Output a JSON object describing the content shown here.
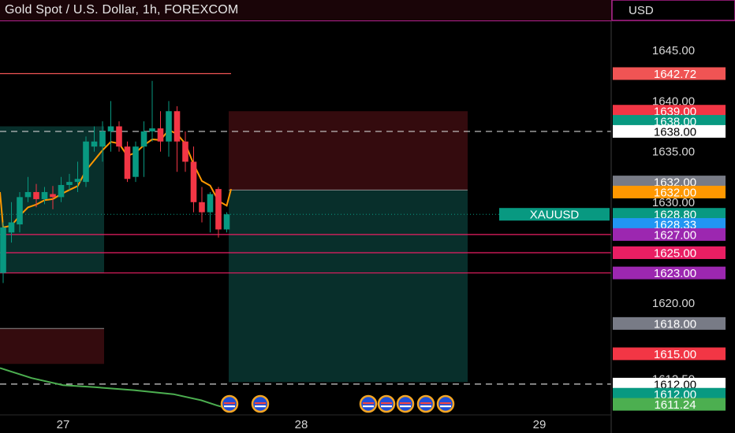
{
  "header": {
    "title": "Gold Spot / U.S. Dollar, 1h, FOREXCOM",
    "currency": "USD"
  },
  "chart_data": {
    "type": "candlestick",
    "symbol": "XAUUSD",
    "interval": "1h",
    "ylim": [
      1609.5,
      1650
    ],
    "x_ticks": [
      "27",
      "28",
      "29"
    ],
    "y_ticks": [
      "1645.00",
      "1640.00",
      "1635.00",
      "1630.00",
      "1625.00",
      "1620.00",
      "1615.00",
      "1612.50"
    ],
    "candles": [
      {
        "o": 1623.0,
        "h": 1628.0,
        "l": 1622.0,
        "c": 1627.5
      },
      {
        "o": 1627.0,
        "h": 1630.0,
        "l": 1626.0,
        "c": 1628.0
      },
      {
        "o": 1627.8,
        "h": 1631.0,
        "l": 1627.0,
        "c": 1630.5
      },
      {
        "o": 1630.5,
        "h": 1632.5,
        "l": 1630.0,
        "c": 1631.0
      },
      {
        "o": 1631.0,
        "h": 1631.8,
        "l": 1629.5,
        "c": 1630.3
      },
      {
        "o": 1630.3,
        "h": 1631.5,
        "l": 1629.8,
        "c": 1631.0
      },
      {
        "o": 1630.8,
        "h": 1631.6,
        "l": 1629.3,
        "c": 1630.5
      },
      {
        "o": 1630.5,
        "h": 1632.5,
        "l": 1630.0,
        "c": 1631.7
      },
      {
        "o": 1631.7,
        "h": 1632.8,
        "l": 1631.2,
        "c": 1632.0
      },
      {
        "o": 1632.0,
        "h": 1634.0,
        "l": 1631.0,
        "c": 1632.3
      },
      {
        "o": 1632.0,
        "h": 1636.5,
        "l": 1631.5,
        "c": 1636.0
      },
      {
        "o": 1635.5,
        "h": 1637.5,
        "l": 1635.0,
        "c": 1636.0
      },
      {
        "o": 1635.5,
        "h": 1638.0,
        "l": 1634.0,
        "c": 1637.0
      },
      {
        "o": 1637.0,
        "h": 1640.0,
        "l": 1635.0,
        "c": 1637.5
      },
      {
        "o": 1637.5,
        "h": 1638.0,
        "l": 1635.0,
        "c": 1635.5
      },
      {
        "o": 1635.5,
        "h": 1636.0,
        "l": 1632.0,
        "c": 1632.3
      },
      {
        "o": 1632.5,
        "h": 1636.0,
        "l": 1632.0,
        "c": 1635.5
      },
      {
        "o": 1635.5,
        "h": 1638.0,
        "l": 1632.5,
        "c": 1637.0
      },
      {
        "o": 1637.0,
        "h": 1642.0,
        "l": 1636.0,
        "c": 1637.3
      },
      {
        "o": 1637.3,
        "h": 1639.0,
        "l": 1635.0,
        "c": 1636.0
      },
      {
        "o": 1636.0,
        "h": 1640.0,
        "l": 1634.5,
        "c": 1639.0
      },
      {
        "o": 1639.0,
        "h": 1639.5,
        "l": 1633.0,
        "c": 1636.0
      },
      {
        "o": 1636.0,
        "h": 1637.0,
        "l": 1633.0,
        "c": 1634.0
      },
      {
        "o": 1634.0,
        "h": 1635.5,
        "l": 1629.0,
        "c": 1630.0
      },
      {
        "o": 1630.0,
        "h": 1631.5,
        "l": 1628.0,
        "c": 1629.0
      },
      {
        "o": 1629.0,
        "h": 1631.0,
        "l": 1627.0,
        "c": 1630.8
      },
      {
        "o": 1631.3,
        "h": 1631.5,
        "l": 1626.5,
        "c": 1627.3
      },
      {
        "o": 1627.3,
        "h": 1629.0,
        "l": 1627.0,
        "c": 1628.8
      }
    ],
    "price_labels": [
      {
        "value": "1642.72",
        "price": 1642.72,
        "color": "#f05454"
      },
      {
        "value": "1639.00",
        "price": 1639.0,
        "color": "#f23645"
      },
      {
        "value": "1638.00",
        "price": 1638.0,
        "color": "#089981"
      },
      {
        "value": "1638.00",
        "price": 1637.0,
        "color": "#ffffff"
      },
      {
        "value": "1632.00",
        "price": 1632.0,
        "color": "#787b86"
      },
      {
        "value": "1632.00",
        "price": 1631.0,
        "color": "#ff9800"
      },
      {
        "value": "1628.80",
        "price": 1628.8,
        "color": "#089981"
      },
      {
        "value": "1628.33",
        "price": 1627.8,
        "color": "#2196f3"
      },
      {
        "value": "1627.00",
        "price": 1626.8,
        "color": "#9c27b0"
      },
      {
        "value": "1625.00",
        "price": 1625.0,
        "color": "#e91e63"
      },
      {
        "value": "1623.00",
        "price": 1623.0,
        "color": "#9c27b0"
      },
      {
        "value": "1618.00",
        "price": 1618.0,
        "color": "#787b86"
      },
      {
        "value": "1615.00",
        "price": 1615.0,
        "color": "#f23645"
      },
      {
        "value": "1612.00",
        "price": 1612.0,
        "color": "#ffffff"
      },
      {
        "value": "1612.00",
        "price": 1611.0,
        "color": "#089981"
      },
      {
        "value": "1611.24",
        "price": 1610.0,
        "color": "#4caf50"
      }
    ],
    "symbol_tag": "XAUUSD",
    "colors": {
      "up": "#089981",
      "down": "#f23645",
      "ema": "#ff9800",
      "slow_ma": "#4caf50",
      "level": "#e91e63",
      "dashed": "#cfcfcf"
    }
  }
}
